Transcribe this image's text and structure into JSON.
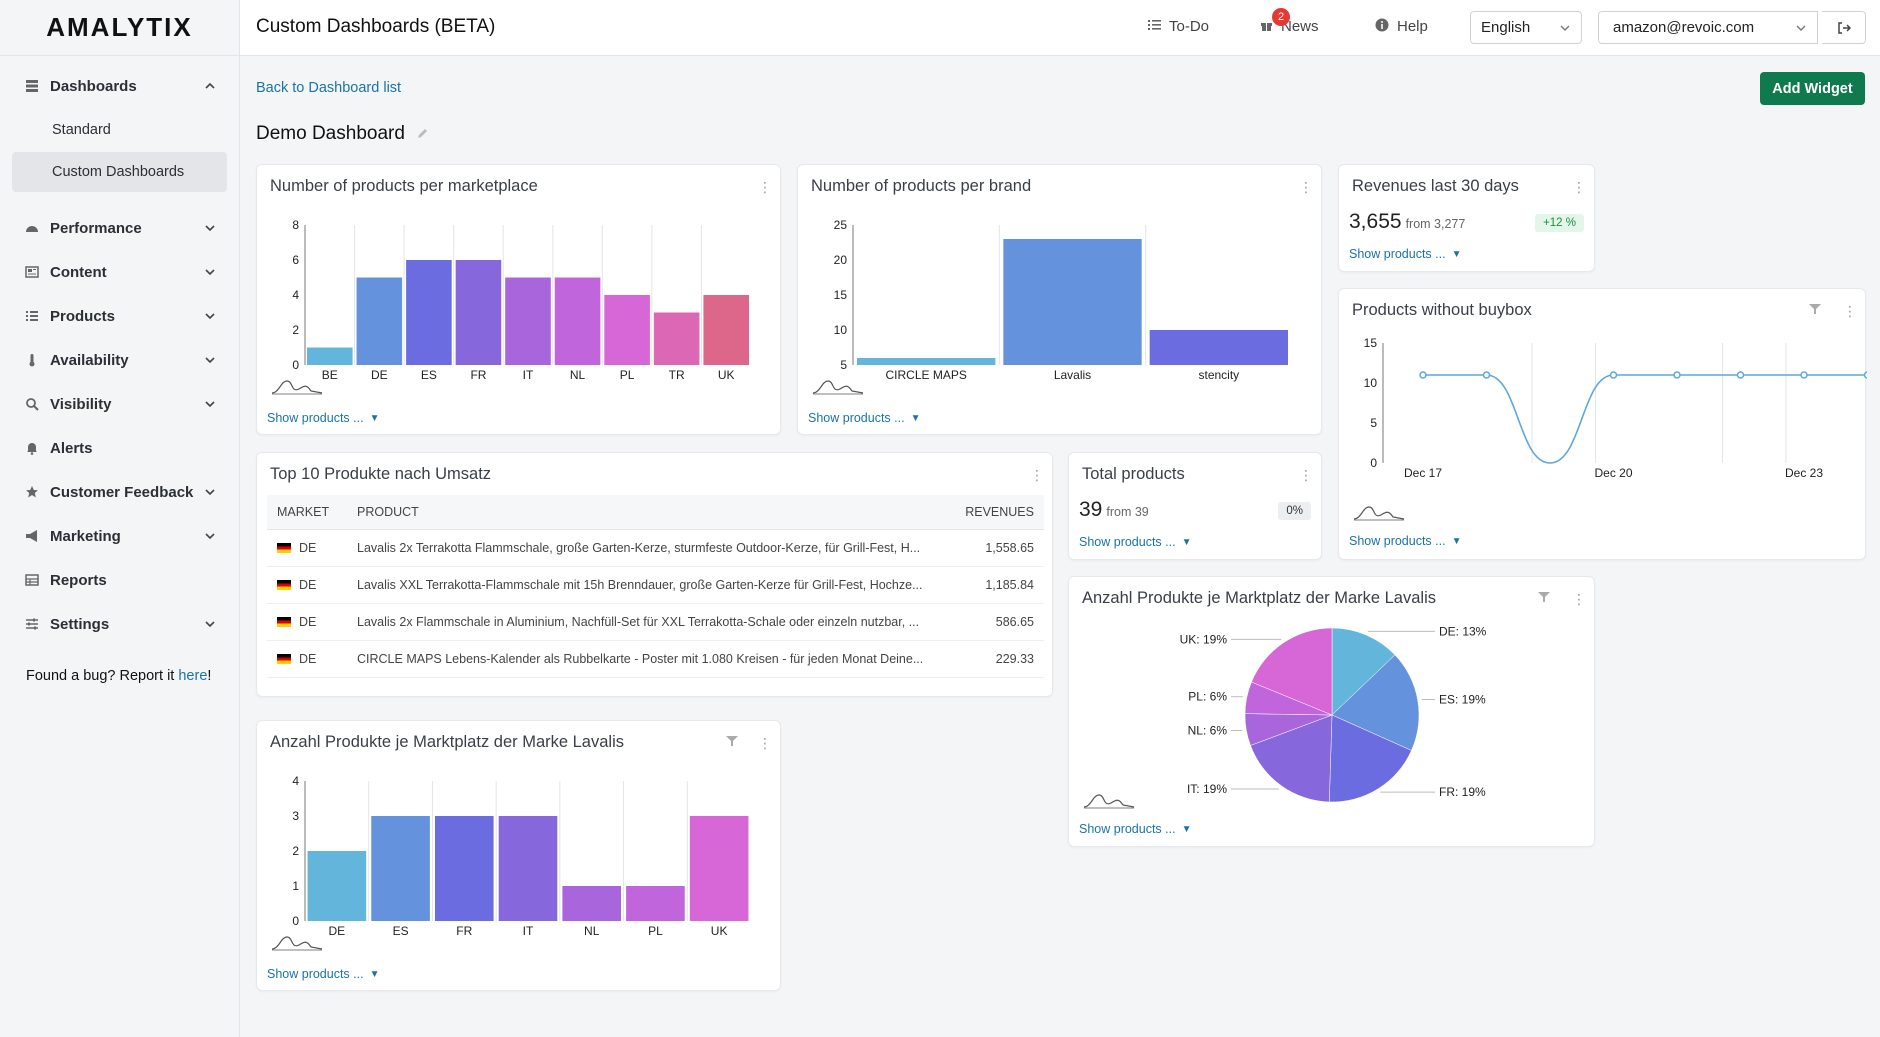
{
  "app": {
    "logo": "AMALYTIX"
  },
  "header": {
    "title": "Custom Dashboards (BETA)",
    "todo_label": "To-Do",
    "news_label": "News",
    "news_count": "2",
    "help_label": "Help",
    "language": "English",
    "account": "amazon@revoic.com"
  },
  "sidebar": {
    "items": [
      {
        "label": "Dashboards",
        "icon": "database-icon"
      },
      {
        "label": "Standard"
      },
      {
        "label": "Custom Dashboards"
      },
      {
        "label": "Performance",
        "icon": "gauge-icon"
      },
      {
        "label": "Content",
        "icon": "newspaper-icon"
      },
      {
        "label": "Products",
        "icon": "list-icon"
      },
      {
        "label": "Availability",
        "icon": "thermometer-icon"
      },
      {
        "label": "Visibility",
        "icon": "search-icon"
      },
      {
        "label": "Alerts",
        "icon": "bell-icon"
      },
      {
        "label": "Customer Feedback",
        "icon": "star-icon"
      },
      {
        "label": "Marketing",
        "icon": "megaphone-icon"
      },
      {
        "label": "Reports",
        "icon": "table-icon"
      },
      {
        "label": "Settings",
        "icon": "sliders-icon"
      }
    ],
    "bug_text": "Found a bug? Report it ",
    "bug_link": "here",
    "bug_end": "!"
  },
  "main": {
    "back_link": "Back to Dashboard list",
    "add_widget": "Add Widget",
    "dashboard_title": "Demo Dashboard",
    "show_products": "Show products ..."
  },
  "widgets": {
    "w1": {
      "title": "Number of products per marketplace"
    },
    "w2": {
      "title": "Number of products per brand"
    },
    "w3": {
      "title": "Revenues last 30 days",
      "value": "3,655",
      "from": "from 3,277",
      "change": "+12 %",
      "change_color": "#1e8e3e"
    },
    "w4": {
      "title": "Products without buybox"
    },
    "w5": {
      "title": "Top 10 Produkte nach Umsatz",
      "columns": [
        "MARKET",
        "PRODUCT",
        "REVENUES"
      ],
      "rows": [
        {
          "market": "DE",
          "product": "Lavalis 2x Terrakotta Flammschale, große Garten-Kerze, sturmfeste Outdoor-Kerze, für Grill-Fest, H...",
          "revenue": "1,558.65"
        },
        {
          "market": "DE",
          "product": "Lavalis XXL Terrakotta-Flammschale mit 15h Brenndauer, große Garten-Kerze für Grill-Fest, Hochze...",
          "revenue": "1,185.84"
        },
        {
          "market": "DE",
          "product": "Lavalis 2x Flammschale in Aluminium, Nachfüll-Set für XXL Terrakotta-Schale oder einzeln nutzbar, ...",
          "revenue": "586.65"
        },
        {
          "market": "DE",
          "product": "CIRCLE MAPS Lebens-Kalender als Rubbelkarte - Poster mit 1.080 Kreisen - für jeden Monat Deine...",
          "revenue": "229.33"
        }
      ]
    },
    "w6": {
      "title": "Total products",
      "value": "39",
      "from": "from 39",
      "change": "0%"
    },
    "w7": {
      "title": "Anzahl Produkte je Marktplatz der Marke Lavalis"
    },
    "w8": {
      "title": "Anzahl Produkte je Marktplatz der Marke Lavalis"
    }
  },
  "chart_data": [
    {
      "id": "w1",
      "type": "bar",
      "categories": [
        "BE",
        "DE",
        "ES",
        "FR",
        "IT",
        "NL",
        "PL",
        "TR",
        "UK"
      ],
      "values": [
        1,
        5,
        6,
        6,
        5,
        5,
        4,
        3,
        4
      ],
      "ylim": [
        0,
        8
      ],
      "yticks": [
        "0",
        "2",
        "4",
        "6",
        "8"
      ],
      "colors": [
        "#64b5dc",
        "#6592dd",
        "#6a6ce0",
        "#8767dc",
        "#a865dc",
        "#c065dc",
        "#d766d6",
        "#dc67b4",
        "#dc678a"
      ]
    },
    {
      "id": "w2",
      "type": "bar",
      "categories": [
        "CIRCLE MAPS",
        "Lavalis",
        "stencity"
      ],
      "values": [
        6,
        23,
        10
      ],
      "ylim": [
        5,
        25
      ],
      "yticks": [
        "5",
        "10",
        "15",
        "20",
        "25"
      ],
      "colors": [
        "#64b5dc",
        "#6592dd",
        "#6a6ce0"
      ]
    },
    {
      "id": "w4",
      "type": "line",
      "x": [
        "Dec 17",
        "Dec 18",
        "Dec 19",
        "Dec 20",
        "Dec 21",
        "Dec 22",
        "Dec 23",
        "Dec 24"
      ],
      "values": [
        11,
        11,
        0,
        11,
        11,
        11,
        11,
        11
      ],
      "xticks": [
        "Dec 17",
        "Dec 20",
        "Dec 23"
      ],
      "ylim": [
        0,
        15
      ],
      "yticks": [
        "0",
        "5",
        "10",
        "15"
      ],
      "color": "#5aa9d6"
    },
    {
      "id": "w7",
      "type": "bar",
      "categories": [
        "DE",
        "ES",
        "FR",
        "IT",
        "NL",
        "PL",
        "UK"
      ],
      "values": [
        2,
        3,
        3,
        3,
        1,
        1,
        3
      ],
      "ylim": [
        0,
        4
      ],
      "yticks": [
        "0",
        "1",
        "2",
        "3",
        "4"
      ],
      "colors": [
        "#64b5dc",
        "#6592dd",
        "#6a6ce0",
        "#8767dc",
        "#a865dc",
        "#c065dc",
        "#d766d6"
      ]
    },
    {
      "id": "w8",
      "type": "pie",
      "labels": [
        "DE",
        "ES",
        "FR",
        "IT",
        "NL",
        "PL",
        "UK"
      ],
      "values": [
        13,
        19,
        19,
        19,
        6,
        6,
        19
      ],
      "label_text": [
        "DE: 13%",
        "ES: 19%",
        "FR: 19%",
        "IT: 19%",
        "NL: 6%",
        "PL: 6%",
        "UK: 19%"
      ],
      "colors": [
        "#64b5dc",
        "#6592dd",
        "#6a6ce0",
        "#8767dc",
        "#a865dc",
        "#c065dc",
        "#d766d6"
      ]
    }
  ]
}
